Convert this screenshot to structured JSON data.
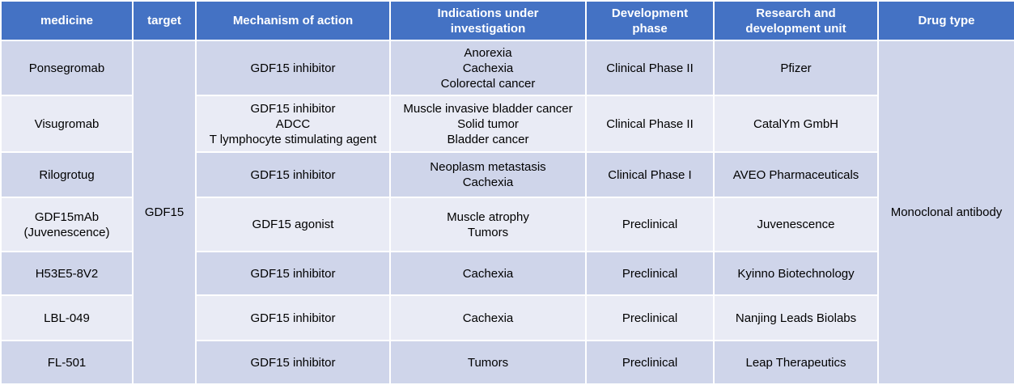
{
  "table": {
    "headers": [
      [
        "medicine"
      ],
      [
        "target"
      ],
      [
        "Mechanism of action"
      ],
      [
        "Indications under",
        "investigation"
      ],
      [
        "Development",
        "phase"
      ],
      [
        "Research and",
        "development unit"
      ],
      [
        "Drug type"
      ]
    ],
    "target": "GDF15",
    "drug_type": "Monoclonal antibody",
    "rows": [
      {
        "medicine": [
          "Ponsegromab"
        ],
        "mechanism": [
          "GDF15 inhibitor"
        ],
        "indications": [
          "Anorexia",
          "Cachexia",
          "Colorectal cancer"
        ],
        "phase": "Clinical Phase II",
        "unit": "Pfizer"
      },
      {
        "medicine": [
          "Visugromab"
        ],
        "mechanism": [
          "GDF15 inhibitor",
          "ADCC",
          "T lymphocyte stimulating agent"
        ],
        "indications": [
          "Muscle invasive bladder cancer",
          "Solid tumor",
          "Bladder cancer"
        ],
        "phase": "Clinical Phase II",
        "unit": "CatalYm GmbH"
      },
      {
        "medicine": [
          "Rilogrotug"
        ],
        "mechanism": [
          "GDF15 inhibitor"
        ],
        "indications": [
          "Neoplasm metastasis",
          "Cachexia"
        ],
        "phase": "Clinical Phase I",
        "unit": "AVEO Pharmaceuticals"
      },
      {
        "medicine": [
          "GDF15mAb",
          "(Juvenescence)"
        ],
        "mechanism": [
          "GDF15 agonist"
        ],
        "indications": [
          "Muscle atrophy",
          "Tumors"
        ],
        "phase": "Preclinical",
        "unit": "Juvenescence"
      },
      {
        "medicine": [
          "H53E5-8V2"
        ],
        "mechanism": [
          "GDF15 inhibitor"
        ],
        "indications": [
          "Cachexia"
        ],
        "phase": "Preclinical",
        "unit": "Kyinno Biotechnology"
      },
      {
        "medicine": [
          "LBL-049"
        ],
        "mechanism": [
          "GDF15 inhibitor"
        ],
        "indications": [
          "Cachexia"
        ],
        "phase": "Preclinical",
        "unit": "Nanjing Leads Biolabs"
      },
      {
        "medicine": [
          "FL-501"
        ],
        "mechanism": [
          "GDF15 inhibitor"
        ],
        "indications": [
          "Tumors"
        ],
        "phase": "Preclinical",
        "unit": "Leap Therapeutics"
      }
    ]
  }
}
